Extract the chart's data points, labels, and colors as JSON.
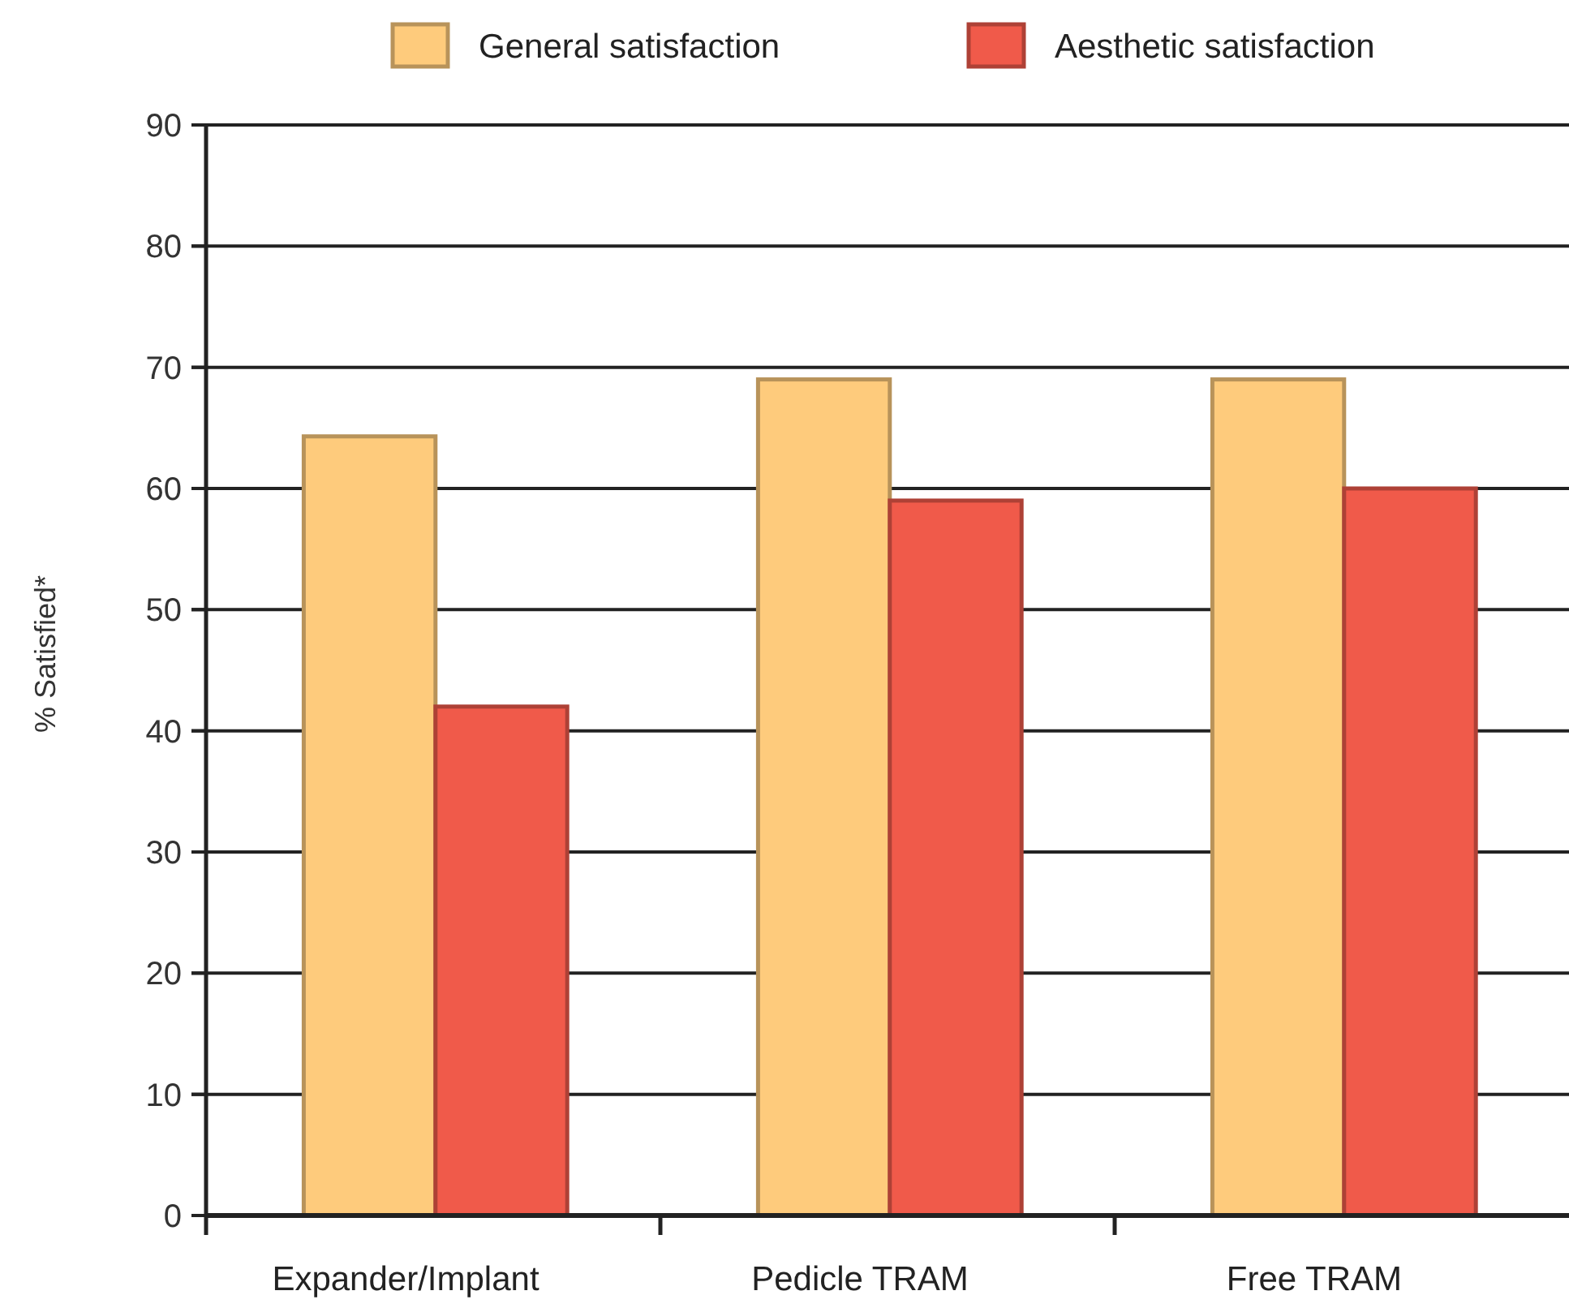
{
  "chart_data": {
    "type": "bar",
    "ylabel": "% Satisfied*",
    "categories": [
      "Expander/Implant",
      "Pedicle TRAM",
      "Free TRAM"
    ],
    "series": [
      {
        "name": "General satisfaction",
        "color": "#fecb7c",
        "values": [
          64.3,
          69,
          69
        ]
      },
      {
        "name": "Aesthetic satisfaction",
        "color": "#f05a4a",
        "values": [
          42,
          59,
          60
        ]
      }
    ],
    "ylim": [
      0,
      90
    ],
    "yticks": [
      0,
      10,
      20,
      30,
      40,
      50,
      60,
      70,
      80,
      90
    ],
    "grid": "y",
    "legend": "top"
  }
}
